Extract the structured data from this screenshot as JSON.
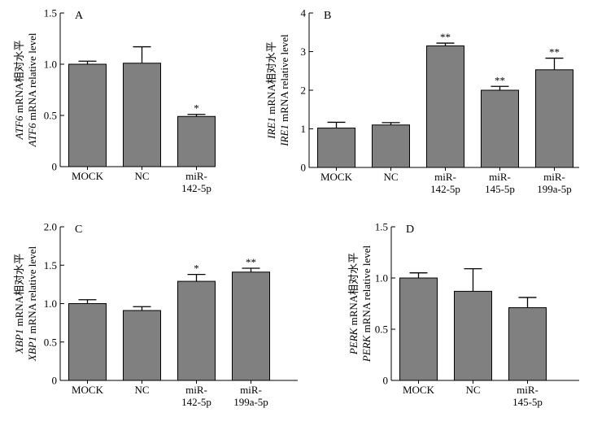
{
  "figure": {
    "panels": [
      "A",
      "B",
      "C",
      "D"
    ]
  },
  "chart_data": [
    {
      "type": "bar",
      "panel": "A",
      "categories": [
        "MOCK",
        "NC",
        "miR-\n142-5p"
      ],
      "values": [
        1.0,
        1.01,
        0.49
      ],
      "errors": [
        0.03,
        0.16,
        0.02
      ],
      "significance": [
        "",
        "",
        "*"
      ],
      "ylabel_line1_italic": "ATF6",
      "ylabel_line1_rest": " mRNA相对水平",
      "ylabel_line2_italic": "ATF6",
      "ylabel_line2_rest": " mRNA relative level",
      "ylim": [
        0,
        1.5
      ],
      "yticks": [
        0,
        0.5,
        1.0,
        1.5
      ],
      "ytick_labels": [
        "0",
        "0.5",
        "1.0",
        "1.5"
      ],
      "bar_color": "#808080"
    },
    {
      "type": "bar",
      "panel": "B",
      "categories": [
        "MOCK",
        "NC",
        "miR-\n142-5p",
        "miR-\n145-5p",
        "miR-\n199a-5p"
      ],
      "values": [
        1.02,
        1.1,
        3.15,
        2.0,
        2.53
      ],
      "errors": [
        0.15,
        0.06,
        0.07,
        0.1,
        0.3
      ],
      "significance": [
        "",
        "",
        "**",
        "**",
        "**"
      ],
      "ylabel_line1_italic": "IRE1",
      "ylabel_line1_rest": " mRNA相对水平",
      "ylabel_line2_italic": "IRE1",
      "ylabel_line2_rest": " mRNA relative level",
      "ylim": [
        0,
        4
      ],
      "yticks": [
        0,
        1,
        2,
        3,
        4
      ],
      "ytick_labels": [
        "0",
        "1",
        "2",
        "3",
        "4"
      ],
      "bar_color": "#808080"
    },
    {
      "type": "bar",
      "panel": "C",
      "categories": [
        "MOCK",
        "NC",
        "miR-\n142-5p",
        "miR-\n199a-5p"
      ],
      "values": [
        1.0,
        0.91,
        1.29,
        1.41
      ],
      "errors": [
        0.05,
        0.05,
        0.09,
        0.05
      ],
      "significance": [
        "",
        "",
        "*",
        "**"
      ],
      "ylabel_line1_italic": "XBP1",
      "ylabel_line1_rest": " mRNA相对水平",
      "ylabel_line2_italic": "XBP1",
      "ylabel_line2_rest": " mRNA relative level",
      "ylim": [
        0,
        2.0
      ],
      "yticks": [
        0,
        0.5,
        1.0,
        1.5,
        2.0
      ],
      "ytick_labels": [
        "0",
        "0.5",
        "1.0",
        "1.5",
        "2.0"
      ],
      "bar_color": "#808080"
    },
    {
      "type": "bar",
      "panel": "D",
      "categories": [
        "MOCK",
        "NC",
        "miR-\n145-5p"
      ],
      "values": [
        1.0,
        0.87,
        0.71
      ],
      "errors": [
        0.05,
        0.22,
        0.1
      ],
      "significance": [
        "",
        "",
        ""
      ],
      "ylabel_line1_italic": "PERK",
      "ylabel_line1_rest": " mRNA相对水平",
      "ylabel_line2_italic": "PERK",
      "ylabel_line2_rest": " mRNA relative level",
      "ylim": [
        0,
        1.5
      ],
      "yticks": [
        0,
        0.5,
        1.0,
        1.5
      ],
      "ytick_labels": [
        "0",
        "0.5",
        "1.0",
        "1.5"
      ],
      "bar_color": "#808080"
    }
  ]
}
